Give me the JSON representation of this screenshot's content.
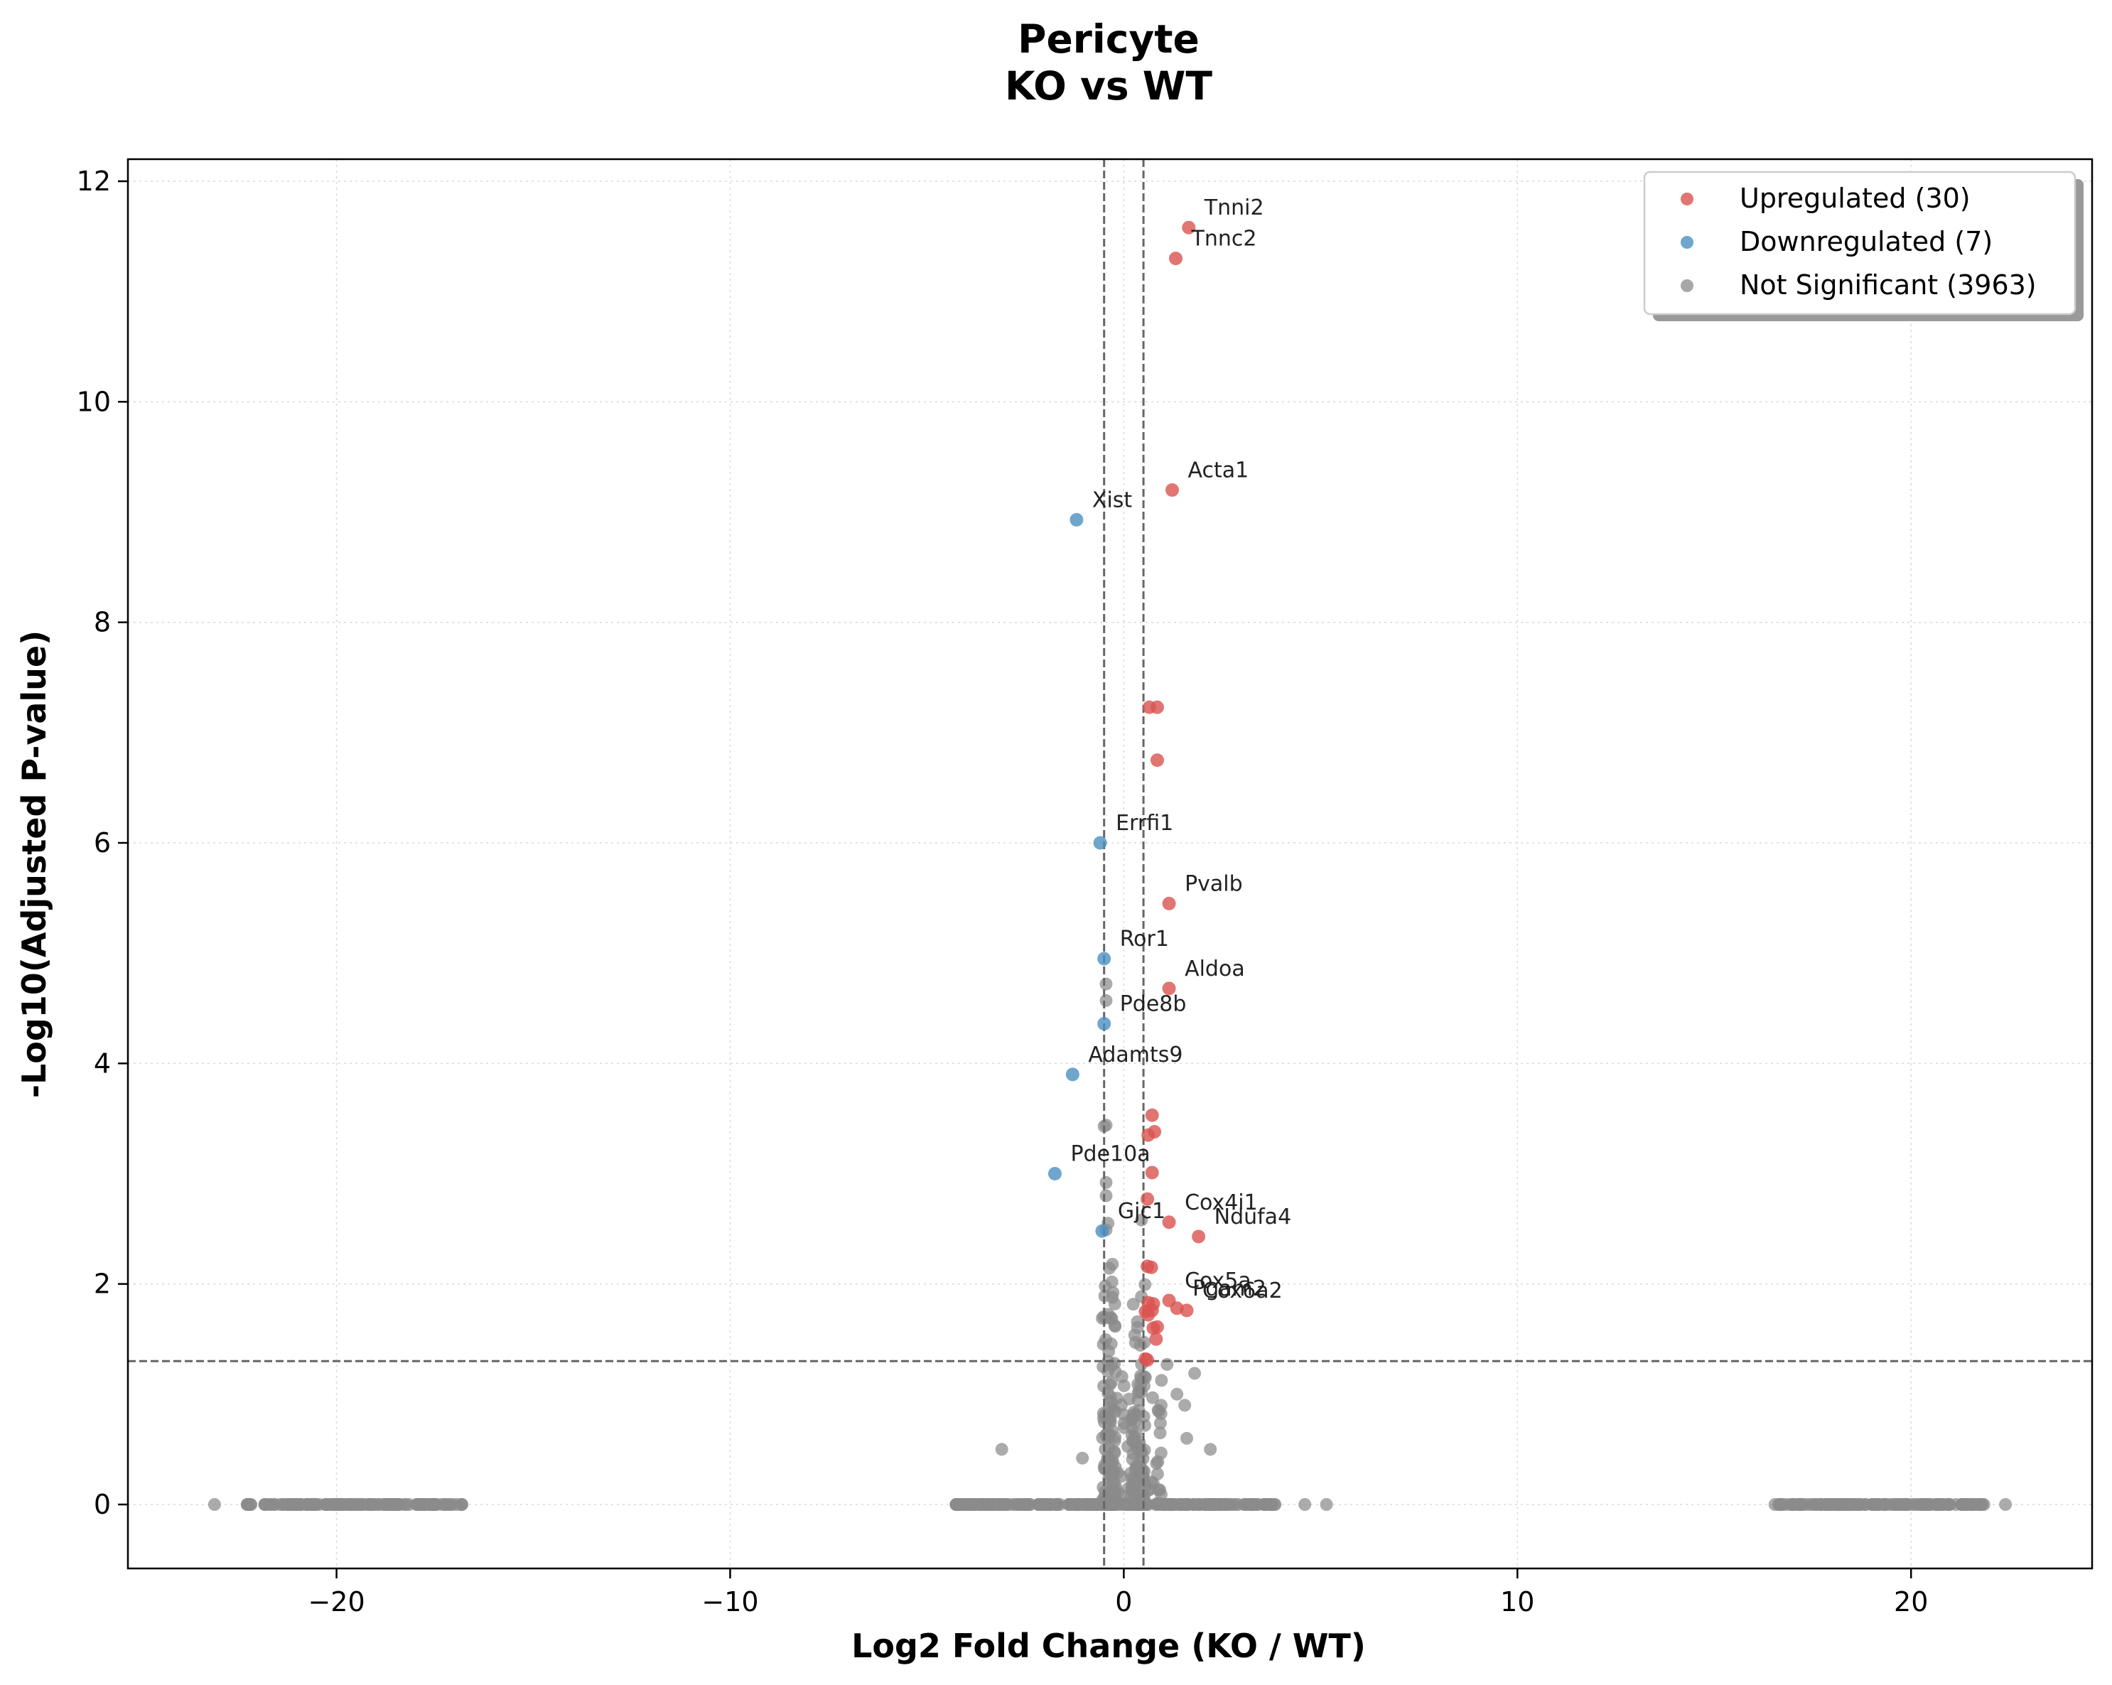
{
  "chart_data": {
    "type": "scatter",
    "title": "Pericyte",
    "subtitle": "KO vs WT",
    "xlabel": "Log2 Fold Change (KO / WT)",
    "ylabel": "-Log10(Adjusted P-value)",
    "xlim": [
      -25.3,
      24.6
    ],
    "ylim": [
      -0.58,
      12.2
    ],
    "x_ticks": [
      -20,
      -10,
      0,
      10,
      20
    ],
    "x_tick_labels": [
      "−20",
      "−10",
      "0",
      "10",
      "20"
    ],
    "y_ticks": [
      0,
      2,
      4,
      6,
      8,
      10,
      12
    ],
    "y_tick_labels": [
      "0",
      "2",
      "4",
      "6",
      "8",
      "10",
      "12"
    ],
    "grid": true,
    "legend_position": "top-right",
    "thresholds": {
      "log2fc": [
        -0.5,
        0.5
      ],
      "neg_log10_padj": 1.3
    },
    "colors": {
      "up": "#d9534f",
      "down": "#4a90c2",
      "ns": "#8a8a8a"
    },
    "legend": [
      {
        "label": "Upregulated (30)",
        "color": "#d9534f"
      },
      {
        "label": "Downregulated (7)",
        "color": "#4a90c2"
      },
      {
        "label": "Not Significant (3963)",
        "color": "#8a8a8a"
      }
    ],
    "series": [
      {
        "name": "Upregulated (30)",
        "color": "#d9534f",
        "points": [
          [
            1.65,
            11.58
          ],
          [
            1.32,
            11.3
          ],
          [
            1.23,
            9.2
          ],
          [
            0.65,
            7.23
          ],
          [
            0.85,
            7.23
          ],
          [
            0.85,
            6.75
          ],
          [
            1.15,
            5.45
          ],
          [
            1.15,
            4.68
          ],
          [
            0.72,
            3.53
          ],
          [
            0.78,
            3.38
          ],
          [
            0.62,
            3.35
          ],
          [
            0.72,
            3.01
          ],
          [
            0.6,
            2.77
          ],
          [
            1.15,
            2.56
          ],
          [
            1.9,
            2.43
          ],
          [
            0.6,
            2.16
          ],
          [
            0.7,
            2.15
          ],
          [
            1.15,
            1.85
          ],
          [
            0.62,
            1.83
          ],
          [
            0.75,
            1.82
          ],
          [
            1.35,
            1.78
          ],
          [
            1.6,
            1.76
          ],
          [
            0.55,
            1.75
          ],
          [
            0.62,
            1.72
          ],
          [
            0.85,
            1.61
          ],
          [
            0.75,
            1.6
          ],
          [
            0.82,
            1.5
          ],
          [
            0.55,
            1.32
          ],
          [
            0.6,
            1.31
          ],
          [
            0.72,
            1.76
          ]
        ]
      },
      {
        "name": "Downregulated (7)",
        "color": "#4a90c2",
        "points": [
          [
            -1.2,
            8.93
          ],
          [
            -0.6,
            6.0
          ],
          [
            -0.5,
            4.95
          ],
          [
            -0.5,
            4.36
          ],
          [
            -1.3,
            3.9
          ],
          [
            -1.75,
            3.0
          ],
          [
            -0.55,
            2.48
          ]
        ]
      }
    ],
    "annotations": [
      {
        "label": "Tnni2",
        "x": 1.65,
        "y": 11.58
      },
      {
        "label": "Tnnc2",
        "x": 1.32,
        "y": 11.3
      },
      {
        "label": "Acta1",
        "x": 1.23,
        "y": 9.2
      },
      {
        "label": "Xist",
        "x": -1.2,
        "y": 8.93
      },
      {
        "label": "Errfi1",
        "x": -0.6,
        "y": 6.0
      },
      {
        "label": "Pvalb",
        "x": 1.15,
        "y": 5.45
      },
      {
        "label": "Ror1",
        "x": -0.5,
        "y": 4.95
      },
      {
        "label": "Aldoa",
        "x": 1.15,
        "y": 4.68
      },
      {
        "label": "Pde8b",
        "x": -0.5,
        "y": 4.36
      },
      {
        "label": "Adamts9",
        "x": -1.3,
        "y": 3.9
      },
      {
        "label": "Pde10a",
        "x": -1.75,
        "y": 3.0
      },
      {
        "label": "Cox4i1",
        "x": 1.15,
        "y": 2.56
      },
      {
        "label": "Gjc1",
        "x": -0.55,
        "y": 2.48
      },
      {
        "label": "Ndufa4",
        "x": 1.9,
        "y": 2.43
      },
      {
        "label": "Cox5a",
        "x": 1.15,
        "y": 1.85
      },
      {
        "label": "Pgam2",
        "x": 1.35,
        "y": 1.78
      },
      {
        "label": "Cox6a2",
        "x": 1.6,
        "y": 1.76
      }
    ]
  }
}
